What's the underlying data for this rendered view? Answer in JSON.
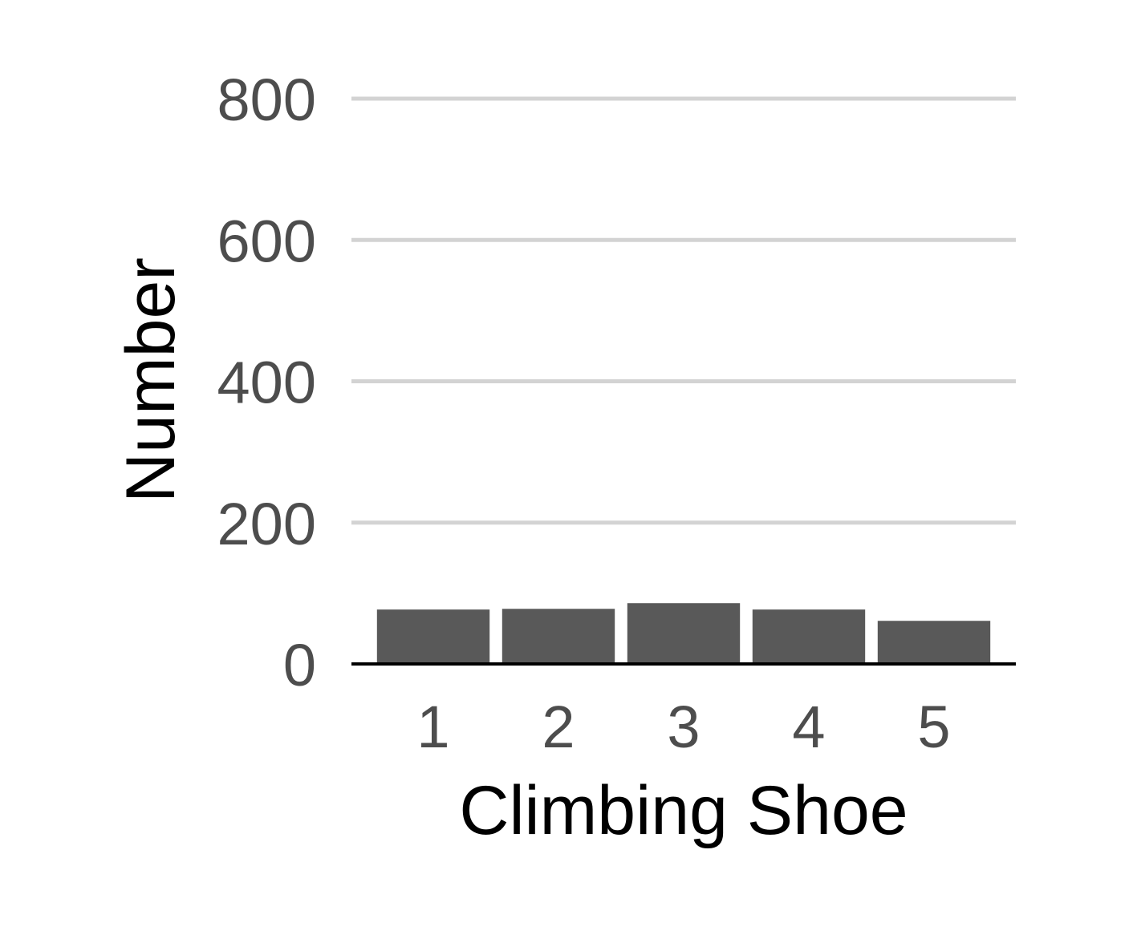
{
  "chart_data": {
    "type": "bar",
    "title": "",
    "xlabel": "Climbing Shoe",
    "ylabel": "Number",
    "categories": [
      "1",
      "2",
      "3",
      "4",
      "5"
    ],
    "values": [
      77,
      78,
      86,
      77,
      61
    ],
    "ylim": [
      0,
      800
    ],
    "yticks": [
      "0",
      "200",
      "400",
      "600",
      "800"
    ],
    "grid": "horizontal",
    "legend": "none",
    "bar_color": "#595959",
    "grid_color": "#d3d3d3"
  }
}
